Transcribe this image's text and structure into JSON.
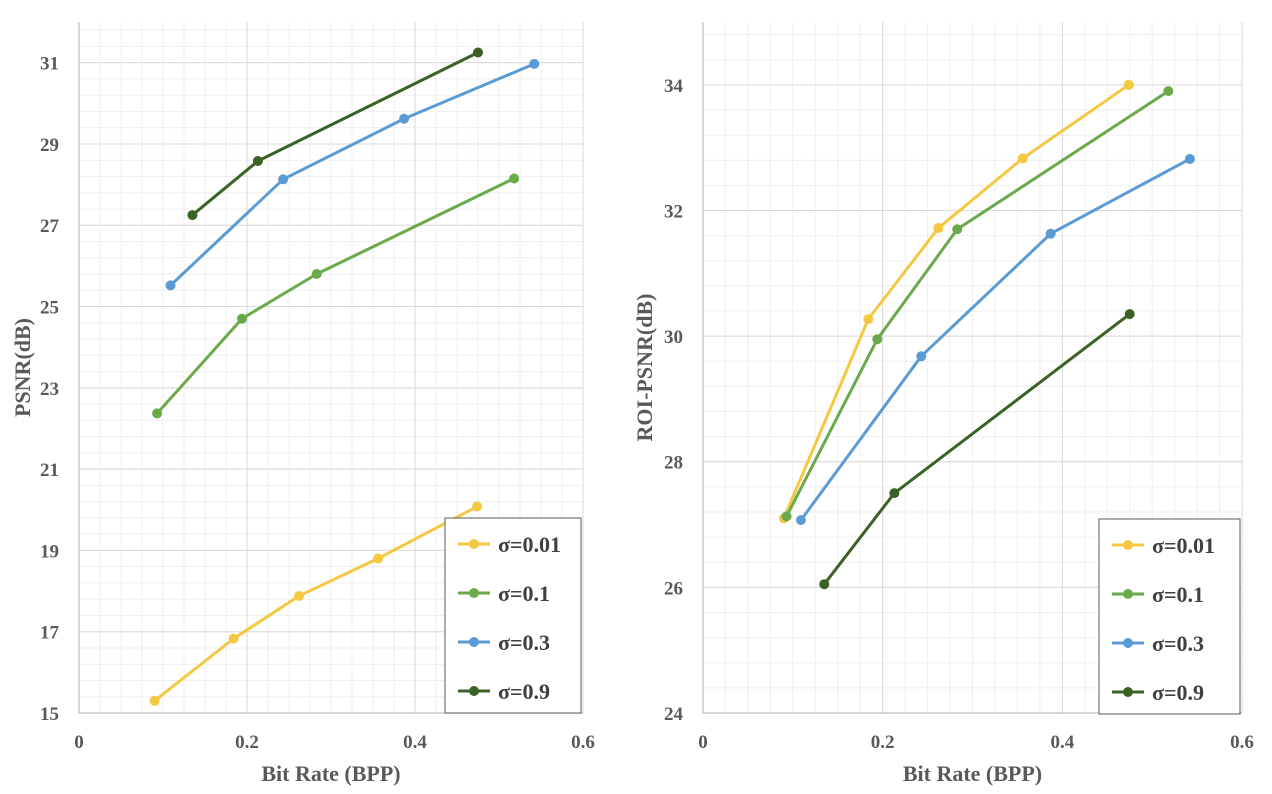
{
  "chart_data": [
    {
      "type": "line",
      "title": "",
      "xlabel": "Bit Rate (BPP)",
      "ylabel": "PSNR(dB)",
      "xlim": [
        0,
        0.6
      ],
      "ylim": [
        15,
        32
      ],
      "xticks": [
        0,
        0.2,
        0.4,
        0.6
      ],
      "xtick_labels": [
        "0",
        "0.2",
        "0.4",
        "0.6"
      ],
      "yticks": [
        15,
        17,
        19,
        21,
        23,
        25,
        27,
        29,
        31
      ],
      "ytick_labels": [
        "15",
        "17",
        "19",
        "21",
        "23",
        "25",
        "27",
        "29",
        "31"
      ],
      "grid": true,
      "legend_position": "bottom-right",
      "series": [
        {
          "name": "σ=0.01",
          "color": "#f5c842",
          "x": [
            0.09,
            0.184,
            0.262,
            0.356,
            0.474
          ],
          "y": [
            15.3,
            16.83,
            17.88,
            18.8,
            20.08
          ]
        },
        {
          "name": "σ=0.1",
          "color": "#6aaa4b",
          "x": [
            0.093,
            0.194,
            0.283,
            0.518
          ],
          "y": [
            22.37,
            24.7,
            25.8,
            28.15
          ]
        },
        {
          "name": "σ=0.3",
          "color": "#5b9bd5",
          "x": [
            0.109,
            0.243,
            0.387,
            0.542
          ],
          "y": [
            25.52,
            28.13,
            29.62,
            30.97
          ]
        },
        {
          "name": "σ=0.9",
          "color": "#3b6125",
          "x": [
            0.135,
            0.213,
            0.475
          ],
          "y": [
            27.25,
            28.58,
            31.25
          ]
        }
      ]
    },
    {
      "type": "line",
      "title": "",
      "xlabel": "Bit Rate (BPP)",
      "ylabel": "ROI-PSNR(dB)",
      "xlim": [
        0,
        0.6
      ],
      "ylim": [
        24,
        35
      ],
      "xticks": [
        0,
        0.2,
        0.4,
        0.6
      ],
      "xtick_labels": [
        "0",
        "0.2",
        "0.4",
        "0.6"
      ],
      "yticks": [
        24,
        26,
        28,
        30,
        32,
        34
      ],
      "ytick_labels": [
        "24",
        "26",
        "28",
        "30",
        "32",
        "34"
      ],
      "grid": true,
      "legend_position": "bottom-right",
      "series": [
        {
          "name": "σ=0.01",
          "color": "#f5c842",
          "x": [
            0.09,
            0.184,
            0.262,
            0.356,
            0.474
          ],
          "y": [
            27.1,
            30.27,
            31.72,
            32.83,
            34.0
          ]
        },
        {
          "name": "σ=0.1",
          "color": "#6aaa4b",
          "x": [
            0.093,
            0.194,
            0.283,
            0.518
          ],
          "y": [
            27.13,
            29.95,
            31.7,
            33.9
          ]
        },
        {
          "name": "σ=0.3",
          "color": "#5b9bd5",
          "x": [
            0.109,
            0.243,
            0.387,
            0.542
          ],
          "y": [
            27.07,
            29.68,
            31.63,
            32.82
          ]
        },
        {
          "name": "σ=0.9",
          "color": "#3b6125",
          "x": [
            0.135,
            0.213,
            0.475
          ],
          "y": [
            26.05,
            27.5,
            30.35
          ]
        }
      ]
    }
  ]
}
